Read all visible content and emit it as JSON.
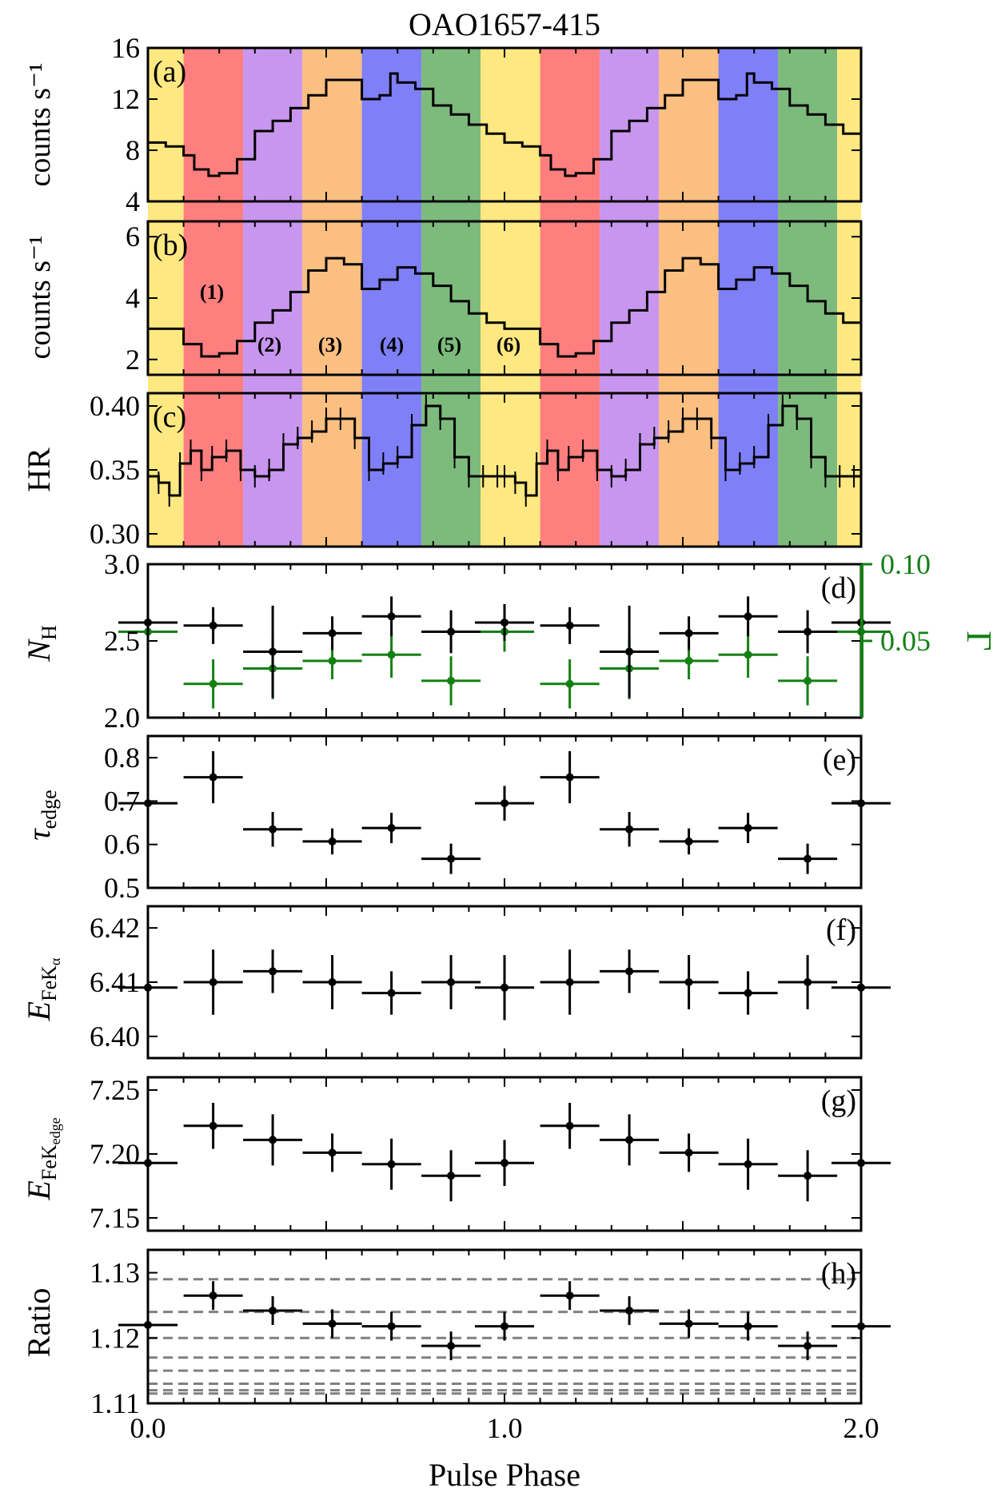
{
  "title": "OAO1657-415",
  "xlabel": "Pulse Phase",
  "xticks": [
    "0.0",
    "1.0",
    "2.0"
  ],
  "colors": {
    "bands": [
      "#fde881",
      "#ff7f7f",
      "#c896ee",
      "#fbbf81",
      "#7f7ff8",
      "#7dbb7d"
    ],
    "green": "#138013",
    "grid": "#808080"
  },
  "chart_data": [
    {
      "panel": "a",
      "type": "line",
      "ylabel": "counts s⁻¹",
      "ylim": [
        4,
        16
      ],
      "yticks": [
        "4",
        "8",
        "12",
        "16"
      ],
      "series": [
        {
          "name": "light curve (a)",
          "x": [
            0.0,
            0.05,
            0.1,
            0.13,
            0.17,
            0.2,
            0.25,
            0.3,
            0.35,
            0.4,
            0.45,
            0.5,
            0.55,
            0.6,
            0.65,
            0.68,
            0.7,
            0.75,
            0.8,
            0.85,
            0.9,
            0.95,
            1.0
          ],
          "y": [
            8.6,
            8.3,
            7.6,
            6.5,
            6.0,
            6.2,
            7.3,
            9.5,
            10.3,
            11.3,
            12.3,
            13.5,
            13.5,
            12.0,
            12.3,
            14.0,
            13.3,
            12.8,
            11.5,
            10.8,
            10.0,
            9.3,
            8.6
          ]
        }
      ]
    },
    {
      "panel": "b",
      "type": "line",
      "ylabel": "counts s⁻¹",
      "ylim": [
        1.5,
        6.5
      ],
      "yticks": [
        "2",
        "4",
        "6"
      ],
      "band_labels": [
        "(1)",
        "(2)",
        "(3)",
        "(4)",
        "(5)",
        "(6)"
      ],
      "series": [
        {
          "name": "light curve (b)",
          "x": [
            0.0,
            0.05,
            0.1,
            0.15,
            0.2,
            0.25,
            0.3,
            0.35,
            0.4,
            0.45,
            0.5,
            0.55,
            0.6,
            0.65,
            0.7,
            0.75,
            0.8,
            0.85,
            0.9,
            0.95,
            1.0
          ],
          "y": [
            3.0,
            3.0,
            2.5,
            2.1,
            2.2,
            2.6,
            3.2,
            3.6,
            4.2,
            4.9,
            5.3,
            5.1,
            4.3,
            4.6,
            5.0,
            4.8,
            4.4,
            3.9,
            3.5,
            3.2,
            3.0
          ]
        }
      ]
    },
    {
      "panel": "c",
      "type": "line",
      "ylabel": "HR",
      "ylim": [
        0.29,
        0.41
      ],
      "yticks": [
        "0.30",
        "0.35",
        "0.40"
      ],
      "series": [
        {
          "name": "hardness ratio",
          "x": [
            0.0,
            0.03,
            0.06,
            0.09,
            0.12,
            0.15,
            0.18,
            0.22,
            0.26,
            0.3,
            0.34,
            0.38,
            0.42,
            0.46,
            0.5,
            0.54,
            0.58,
            0.62,
            0.66,
            0.7,
            0.74,
            0.78,
            0.82,
            0.86,
            0.9,
            0.94,
            0.98,
            1.0
          ],
          "y": [
            0.345,
            0.34,
            0.33,
            0.355,
            0.365,
            0.35,
            0.36,
            0.365,
            0.35,
            0.345,
            0.35,
            0.37,
            0.375,
            0.38,
            0.39,
            0.39,
            0.375,
            0.35,
            0.355,
            0.36,
            0.385,
            0.4,
            0.39,
            0.36,
            0.345,
            0.345,
            0.345,
            0.345
          ]
        }
      ]
    },
    {
      "panel": "d",
      "type": "scatter",
      "ylabel": "N_H",
      "ylabel_right": "Γ",
      "ylim": [
        2.0,
        3.0
      ],
      "yticks": [
        "2.0",
        "2.5",
        "3.0"
      ],
      "ylim_right": [
        0.0,
        0.1
      ],
      "yticks_right": [
        "0.05",
        "0.10"
      ],
      "series": [
        {
          "name": "N_H",
          "x": [
            0.0,
            0.183,
            0.35,
            0.517,
            0.683,
            0.85,
            1.0
          ],
          "xerr": [
            0.083,
            0.083,
            0.083,
            0.083,
            0.083,
            0.083,
            0.083
          ],
          "y": [
            2.62,
            2.6,
            2.43,
            2.55,
            2.66,
            2.56,
            2.62
          ],
          "yerr": [
            0.12,
            0.12,
            0.3,
            0.11,
            0.13,
            0.14,
            0.12
          ]
        },
        {
          "name": "Γ",
          "x": [
            0.0,
            0.183,
            0.35,
            0.517,
            0.683,
            0.85,
            1.0
          ],
          "xerr": [
            0.083,
            0.083,
            0.083,
            0.083,
            0.083,
            0.083,
            0.083
          ],
          "y": [
            0.056,
            0.022,
            0.032,
            0.037,
            0.041,
            0.024,
            0.056
          ],
          "yerr": [
            0.013,
            0.016,
            0.02,
            0.012,
            0.015,
            0.016,
            0.013
          ]
        }
      ]
    },
    {
      "panel": "e",
      "type": "scatter",
      "ylabel": "τ_edge",
      "ylim": [
        0.5,
        0.85
      ],
      "yticks": [
        "0.5",
        "0.6",
        "0.7",
        "0.8"
      ],
      "series": [
        {
          "name": "τ_edge",
          "x": [
            0.0,
            0.183,
            0.35,
            0.517,
            0.683,
            0.85,
            1.0
          ],
          "xerr": [
            0.083,
            0.083,
            0.083,
            0.083,
            0.083,
            0.083,
            0.083
          ],
          "y": [
            0.695,
            0.755,
            0.635,
            0.607,
            0.638,
            0.567,
            0.695
          ],
          "yerr": [
            0.04,
            0.06,
            0.04,
            0.03,
            0.035,
            0.035,
            0.04
          ]
        }
      ]
    },
    {
      "panel": "f",
      "type": "scatter",
      "ylabel": "E_FeKα",
      "ylim": [
        6.396,
        6.424
      ],
      "yticks": [
        "6.40",
        "6.41",
        "6.42"
      ],
      "series": [
        {
          "name": "E_FeKalpha",
          "x": [
            0.0,
            0.183,
            0.35,
            0.517,
            0.683,
            0.85,
            1.0
          ],
          "xerr": [
            0.083,
            0.083,
            0.083,
            0.083,
            0.083,
            0.083,
            0.083
          ],
          "y": [
            6.409,
            6.41,
            6.412,
            6.41,
            6.408,
            6.41,
            6.409
          ],
          "yerr": [
            0.006,
            0.006,
            0.004,
            0.005,
            0.004,
            0.005,
            0.006
          ]
        }
      ]
    },
    {
      "panel": "g",
      "type": "scatter",
      "ylabel": "E_FeKedge",
      "ylim": [
        7.14,
        7.26
      ],
      "yticks": [
        "7.15",
        "7.20",
        "7.25"
      ],
      "series": [
        {
          "name": "E_FeKedge",
          "x": [
            0.0,
            0.183,
            0.35,
            0.517,
            0.683,
            0.85,
            1.0
          ],
          "xerr": [
            0.083,
            0.083,
            0.083,
            0.083,
            0.083,
            0.083,
            0.083
          ],
          "y": [
            7.193,
            7.222,
            7.211,
            7.201,
            7.192,
            7.183,
            7.193
          ],
          "yerr": [
            0.018,
            0.018,
            0.02,
            0.015,
            0.02,
            0.02,
            0.018
          ]
        }
      ]
    },
    {
      "panel": "h",
      "type": "scatter",
      "ylabel": "Ratio",
      "ylim": [
        1.11,
        1.1335
      ],
      "yticks": [
        "1.11",
        "1.12",
        "1.13"
      ],
      "reference_lines": [
        1.129,
        1.124,
        1.12,
        1.117,
        1.115,
        1.113,
        1.112,
        1.1115
      ],
      "series": [
        {
          "name": "Ratio",
          "x": [
            0.0,
            0.183,
            0.35,
            0.517,
            0.683,
            0.85,
            1.0
          ],
          "xerr": [
            0.083,
            0.083,
            0.083,
            0.083,
            0.083,
            0.083,
            0.083
          ],
          "y": [
            1.122,
            1.1265,
            1.1242,
            1.1222,
            1.1218,
            1.1188,
            1.1218
          ],
          "yerr": [
            0.0022,
            0.0022,
            0.0022,
            0.0022,
            0.0022,
            0.0022,
            0.0022
          ]
        }
      ]
    }
  ]
}
